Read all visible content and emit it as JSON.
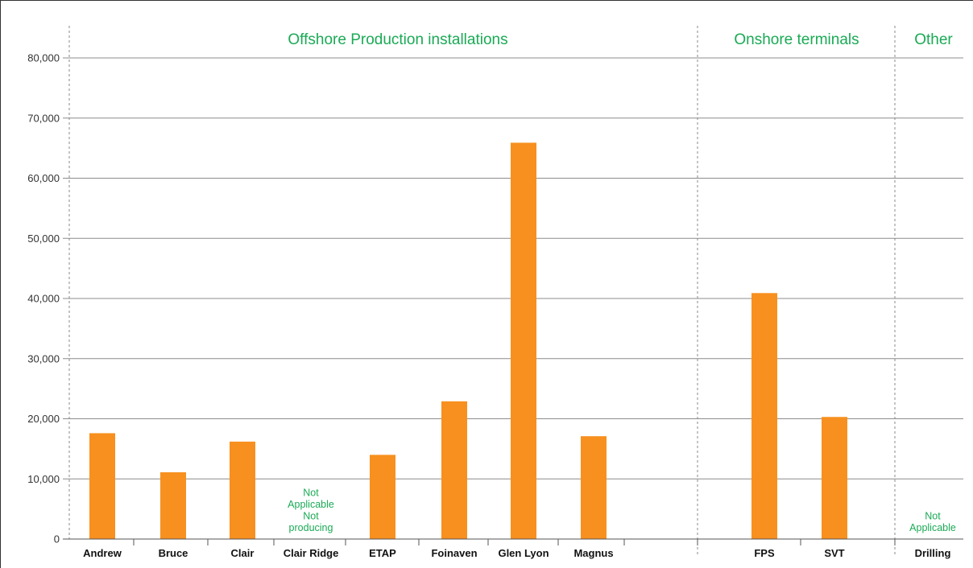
{
  "chart_data": {
    "type": "bar",
    "title": "",
    "xlabel": "",
    "ylabel": "",
    "ylim": [
      0,
      85000
    ],
    "yticks": [
      0,
      10000,
      20000,
      30000,
      40000,
      50000,
      60000,
      70000,
      80000
    ],
    "ytick_labels": [
      "0",
      "10,000",
      "20,000",
      "30,000",
      "40,000",
      "50,000",
      "60,000",
      "70,000",
      "80,000"
    ],
    "grid": true,
    "bar_color": "#f7901e",
    "label_color": "#1aaa55",
    "groups": [
      {
        "label": "Offshore Production installations"
      },
      {
        "label": "Onshore terminals"
      },
      {
        "label": "Other"
      }
    ],
    "categories": [
      "Andrew",
      "Bruce",
      "Clair",
      "Clair Ridge",
      "ETAP",
      "Foinaven",
      "Glen Lyon",
      "Magnus",
      "FPS",
      "SVT",
      "Drilling"
    ],
    "values": [
      17600,
      11100,
      16200,
      null,
      14000,
      22900,
      65900,
      17100,
      40900,
      20300,
      null
    ],
    "annotations": [
      {
        "category": "Clair Ridge",
        "lines": [
          "Not",
          "Applicable",
          "Not",
          "producing"
        ]
      },
      {
        "category": "Drilling",
        "lines": [
          "Not",
          "Applicable"
        ]
      }
    ]
  }
}
